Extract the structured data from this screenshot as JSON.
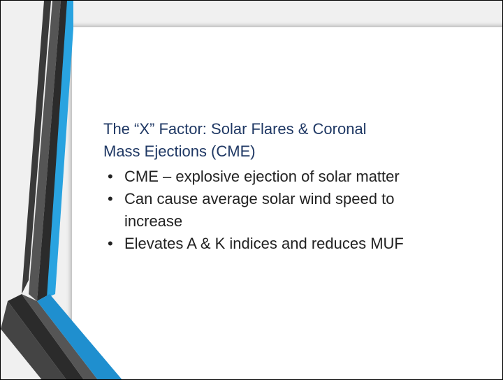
{
  "slide": {
    "title_lines": [
      "The “X” Factor: Solar Flares & Coronal",
      "Mass Ejections (CME)"
    ],
    "bullets": [
      "CME – explosive ejection of solar matter",
      "Can cause average solar wind speed to increase",
      "Elevates A & K indices and reduces MUF"
    ]
  }
}
